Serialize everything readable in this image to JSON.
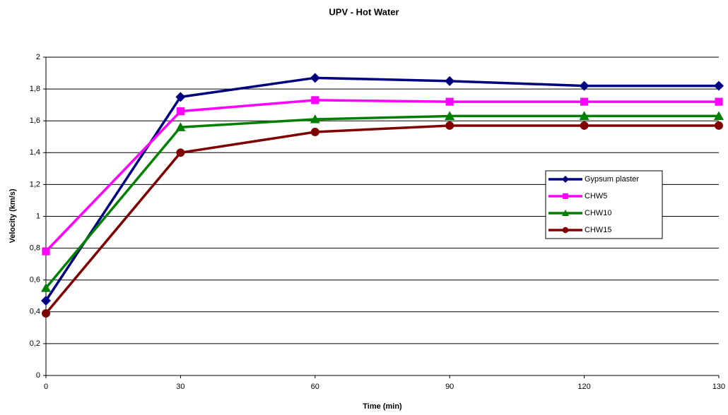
{
  "chart_data": {
    "type": "line",
    "title": "UPV - Hot Water",
    "x_label": "Time (min)",
    "y_label": "Velocity (km/s)",
    "categories": [
      "0",
      "30",
      "60",
      "90",
      "120",
      "130"
    ],
    "series": [
      {
        "name": "Gypsum plaster",
        "color": "#000080",
        "marker": "diamond",
        "values": [
          0.47,
          1.75,
          1.87,
          1.85,
          1.82,
          1.82
        ]
      },
      {
        "name": "CHW5",
        "color": "#ff00ff",
        "marker": "square",
        "values": [
          0.78,
          1.66,
          1.73,
          1.72,
          1.72,
          1.72
        ]
      },
      {
        "name": "CHW10",
        "color": "#008000",
        "marker": "triangle",
        "values": [
          0.55,
          1.56,
          1.61,
          1.63,
          1.63,
          1.63
        ]
      },
      {
        "name": "CHW15",
        "color": "#800000",
        "marker": "circle",
        "values": [
          0.39,
          1.4,
          1.53,
          1.57,
          1.57,
          1.57
        ]
      }
    ],
    "ylim": [
      0,
      2
    ],
    "yticks": [
      0,
      {
        "value": 0.2,
        "label": "0,2"
      },
      {
        "value": 0.4,
        "label": "0,4"
      },
      {
        "value": 0.6,
        "label": "0,6"
      },
      {
        "value": 0.8,
        "label": "0,8"
      },
      1,
      {
        "value": 1.2,
        "label": "1,2"
      },
      {
        "value": 1.4,
        "label": "1,4"
      },
      {
        "value": 1.6,
        "label": "1,6"
      },
      {
        "value": 1.8,
        "label": "1,8"
      },
      2
    ],
    "grid": true,
    "legend": "right"
  }
}
